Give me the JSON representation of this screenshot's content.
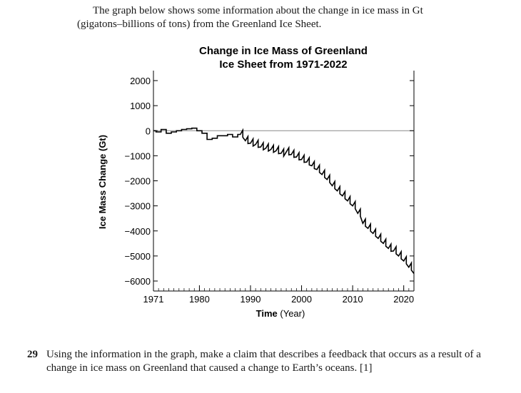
{
  "intro": {
    "line1": "The graph below shows some information about the change in ice mass in Gt",
    "line2": "(gigatons–billions of tons) from the Greenland Ice Sheet."
  },
  "chart_data": {
    "type": "line",
    "title": "Change in Ice Mass of Greenland",
    "subtitle": "Ice Sheet from 1971-2022",
    "xlabel_bold": "Time",
    "xlabel_unit": " (Year)",
    "ylabel": "Ice Mass Change (Gt)",
    "xlim": [
      1971,
      2022
    ],
    "ylim": [
      -6200,
      2200
    ],
    "x_ticks": [
      1971,
      1980,
      1990,
      2000,
      2010,
      2020
    ],
    "y_ticks": [
      2000,
      1000,
      0,
      -1000,
      -2000,
      -3000,
      -4000,
      -5000,
      -6000
    ],
    "y_tick_labels": [
      "2000",
      "1000",
      "0",
      "−1000",
      "−2000",
      "−3000",
      "−4000",
      "−5000",
      "−6000"
    ],
    "zero_line": true,
    "grid": false,
    "series": [
      {
        "x": [
          1971,
          1972,
          1973,
          1974,
          1975,
          1976,
          1977,
          1978,
          1979,
          1980,
          1981,
          1982,
          1983,
          1984,
          1985,
          1986,
          1987,
          1988,
          1989,
          1990,
          1991,
          1992,
          1993,
          1994,
          1995,
          1996,
          1997,
          1998,
          1999,
          2000,
          2001,
          2002,
          2003,
          2004,
          2005,
          2006,
          2007,
          2008,
          2009,
          2010,
          2011,
          2012,
          2013,
          2014,
          2015,
          2016,
          2017,
          2018,
          2019,
          2020,
          2021,
          2022
        ],
        "y": [
          0,
          -50,
          50,
          -100,
          -50,
          0,
          50,
          75,
          100,
          0,
          -100,
          -350,
          -300,
          -200,
          -200,
          -150,
          -250,
          -150,
          -400,
          -500,
          -550,
          -650,
          -700,
          -750,
          -800,
          -900,
          -850,
          -950,
          -1050,
          -1150,
          -1250,
          -1400,
          -1550,
          -1750,
          -1950,
          -2200,
          -2400,
          -2600,
          -2800,
          -3000,
          -3300,
          -3700,
          -3900,
          -4100,
          -4300,
          -4500,
          -4700,
          -4800,
          -5000,
          -5200,
          -5450,
          -5700
        ]
      }
    ]
  },
  "question": {
    "number": "29",
    "text": "Using the information in the graph, make a claim that describes a feedback that occurs as a result of a change in ice mass on Greenland that caused a change to Earth’s oceans.  [1]"
  }
}
